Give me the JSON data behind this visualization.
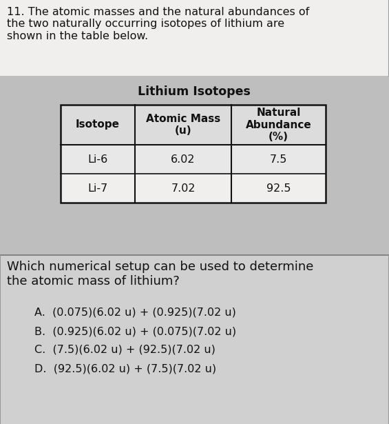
{
  "question_number": "11.",
  "question_text": "The atomic masses and the natural abundances of\nthe two naturally occurring isotopes of lithium are\nshown in the table below.",
  "table_title": "Lithium Isotopes",
  "col_headers": [
    "Isotope",
    "Atomic Mass\n(u)",
    "Natural\nAbundance\n(%)"
  ],
  "rows": [
    [
      "Li-6",
      "6.02",
      "7.5"
    ],
    [
      "Li-7",
      "7.02",
      "92.5"
    ]
  ],
  "question2": "Which numerical setup can be used to determine\nthe atomic mass of lithium?",
  "choices": [
    "A.  (0.075)(6.02 u) + (0.925)(7.02 u)",
    "B.  (0.925)(6.02 u) + (0.075)(7.02 u)",
    "C.  (7.5)(6.02 u) + (92.5)(7.02 u)",
    "D.  (92.5)(6.02 u) + (7.5)(7.02 u)"
  ],
  "bg_color": "#c8c8c8",
  "white_color": "#ffffff",
  "text_color": "#111111",
  "border_color": "#111111",
  "table_area_bg": "#b8b8b8",
  "separator_color": "#888888",
  "question_area_bg": "#cccccc"
}
